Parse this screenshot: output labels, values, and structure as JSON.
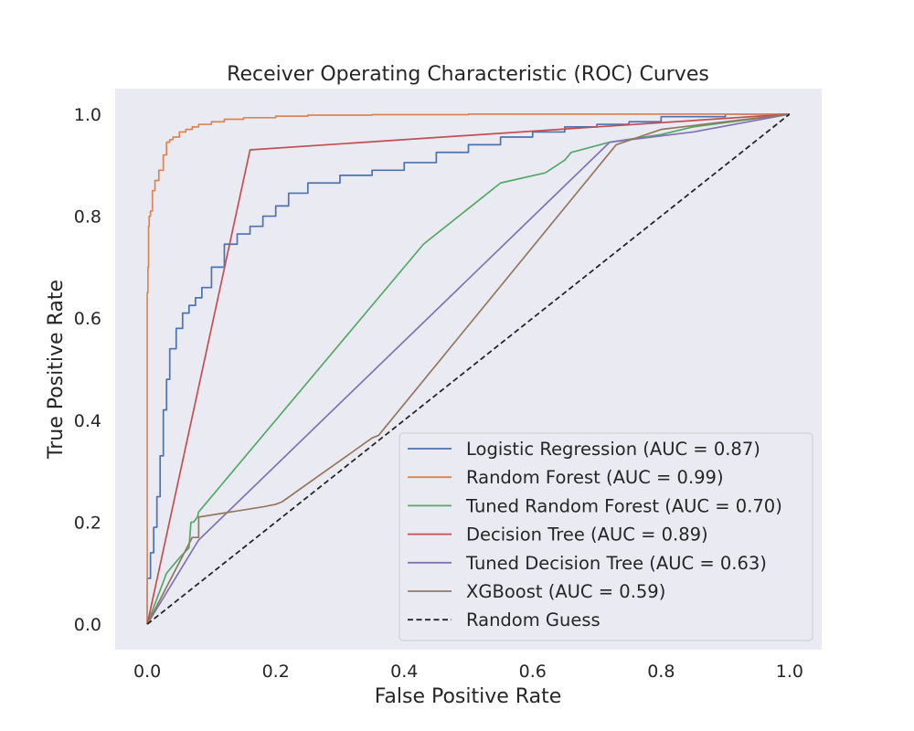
{
  "chart_data": {
    "type": "line",
    "title": "Receiver Operating Characteristic (ROC) Curves",
    "xlabel": "False Positive Rate",
    "ylabel": "True Positive Rate",
    "xlim": [
      -0.05,
      1.05
    ],
    "ylim": [
      -0.05,
      1.05
    ],
    "xticks": [
      0.0,
      0.2,
      0.4,
      0.6,
      0.8,
      1.0
    ],
    "yticks": [
      0.0,
      0.2,
      0.4,
      0.6,
      0.8,
      1.0
    ],
    "xtick_labels": [
      "0.0",
      "0.2",
      "0.4",
      "0.6",
      "0.8",
      "1.0"
    ],
    "ytick_labels": [
      "0.0",
      "0.2",
      "0.4",
      "0.6",
      "0.8",
      "1.0"
    ],
    "grid": false,
    "legend_position": "lower-right",
    "colors": {
      "background": "#eaeaf2",
      "text": "#262626"
    },
    "series": [
      {
        "name": "Logistic Regression (AUC = 0.87)",
        "color": "#4c72b0",
        "style": "solid",
        "step": true,
        "x": [
          0,
          0.005,
          0.01,
          0.015,
          0.02,
          0.025,
          0.03,
          0.035,
          0.045,
          0.055,
          0.065,
          0.075,
          0.085,
          0.1,
          0.12,
          0.14,
          0.16,
          0.18,
          0.2,
          0.22,
          0.25,
          0.3,
          0.35,
          0.4,
          0.45,
          0.5,
          0.55,
          0.6,
          0.65,
          0.7,
          0.75,
          0.8,
          0.9,
          1.0
        ],
        "y": [
          0,
          0.09,
          0.14,
          0.19,
          0.25,
          0.33,
          0.42,
          0.48,
          0.54,
          0.58,
          0.61,
          0.625,
          0.64,
          0.66,
          0.7,
          0.745,
          0.765,
          0.78,
          0.8,
          0.82,
          0.845,
          0.865,
          0.88,
          0.89,
          0.905,
          0.925,
          0.94,
          0.955,
          0.965,
          0.975,
          0.98,
          0.985,
          0.995,
          1.0
        ]
      },
      {
        "name": "Random Forest (AUC = 0.99)",
        "color": "#dd8452",
        "style": "solid",
        "step": true,
        "x": [
          0,
          0.001,
          0.002,
          0.003,
          0.005,
          0.008,
          0.012,
          0.018,
          0.025,
          0.03,
          0.035,
          0.04,
          0.05,
          0.06,
          0.07,
          0.08,
          0.1,
          0.12,
          0.15,
          0.2,
          0.25,
          0.35,
          0.5,
          0.7,
          1.0
        ],
        "y": [
          0,
          0.65,
          0.7,
          0.78,
          0.8,
          0.81,
          0.85,
          0.87,
          0.89,
          0.92,
          0.945,
          0.95,
          0.955,
          0.965,
          0.97,
          0.975,
          0.98,
          0.985,
          0.99,
          0.993,
          0.996,
          0.998,
          0.999,
          1.0,
          1.0
        ]
      },
      {
        "name": "Tuned Random Forest (AUC = 0.70)",
        "color": "#55a868",
        "style": "solid",
        "step": false,
        "x": [
          0,
          0.03,
          0.05,
          0.065,
          0.068,
          0.072,
          0.078,
          0.08,
          0.43,
          0.55,
          0.62,
          0.65,
          0.66,
          0.72,
          0.8,
          0.85,
          1.0
        ],
        "y": [
          0,
          0.1,
          0.13,
          0.15,
          0.2,
          0.2,
          0.21,
          0.22,
          0.745,
          0.865,
          0.885,
          0.91,
          0.925,
          0.945,
          0.96,
          0.975,
          1.0
        ]
      },
      {
        "name": "Decision Tree (AUC = 0.89)",
        "color": "#c44e52",
        "style": "solid",
        "step": false,
        "x": [
          0,
          0.16,
          1.0
        ],
        "y": [
          0,
          0.93,
          1.0
        ]
      },
      {
        "name": "Tuned Decision Tree (AUC = 0.63)",
        "color": "#8172b3",
        "style": "solid",
        "step": false,
        "x": [
          0,
          0.08,
          0.72,
          0.85,
          1.0
        ],
        "y": [
          0,
          0.165,
          0.945,
          0.965,
          1.0
        ]
      },
      {
        "name": "XGBoost (AUC = 0.59)",
        "color": "#937860",
        "style": "solid",
        "step": false,
        "x": [
          0,
          0.07,
          0.08,
          0.08,
          0.18,
          0.2,
          0.21,
          0.35,
          0.36,
          0.73,
          0.8,
          1.0
        ],
        "y": [
          0,
          0.17,
          0.17,
          0.21,
          0.23,
          0.235,
          0.24,
          0.365,
          0.37,
          0.94,
          0.97,
          1.0
        ]
      },
      {
        "name": "Random Guess",
        "color": "#262626",
        "style": "dashed",
        "step": false,
        "x": [
          0,
          1
        ],
        "y": [
          0,
          1
        ]
      }
    ]
  }
}
